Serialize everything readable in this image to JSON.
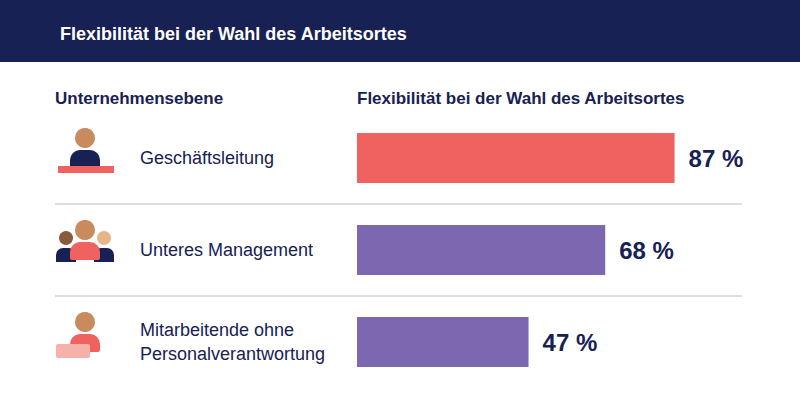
{
  "chart_data": {
    "type": "bar",
    "title": "Flexibilität bei der Wahl des Arbeitsortes",
    "y_label": "Unternehmensebene",
    "x_label": "Flexibilität bei der Wahl des Arbeitsortes",
    "orientation": "horizontal",
    "categories": [
      "Geschäftsleitung",
      "Unteres Management",
      "Mitarbeitende ohne Personalverantwortung"
    ],
    "values": [
      87,
      68,
      47
    ],
    "value_labels": [
      "87 %",
      "68 %",
      "47 %"
    ],
    "colors": [
      "#f0625f",
      "#7b68b0",
      "#7b68b0"
    ],
    "xlim": [
      0,
      100
    ],
    "data_labels": true,
    "tick_labels": false,
    "grid": false
  }
}
